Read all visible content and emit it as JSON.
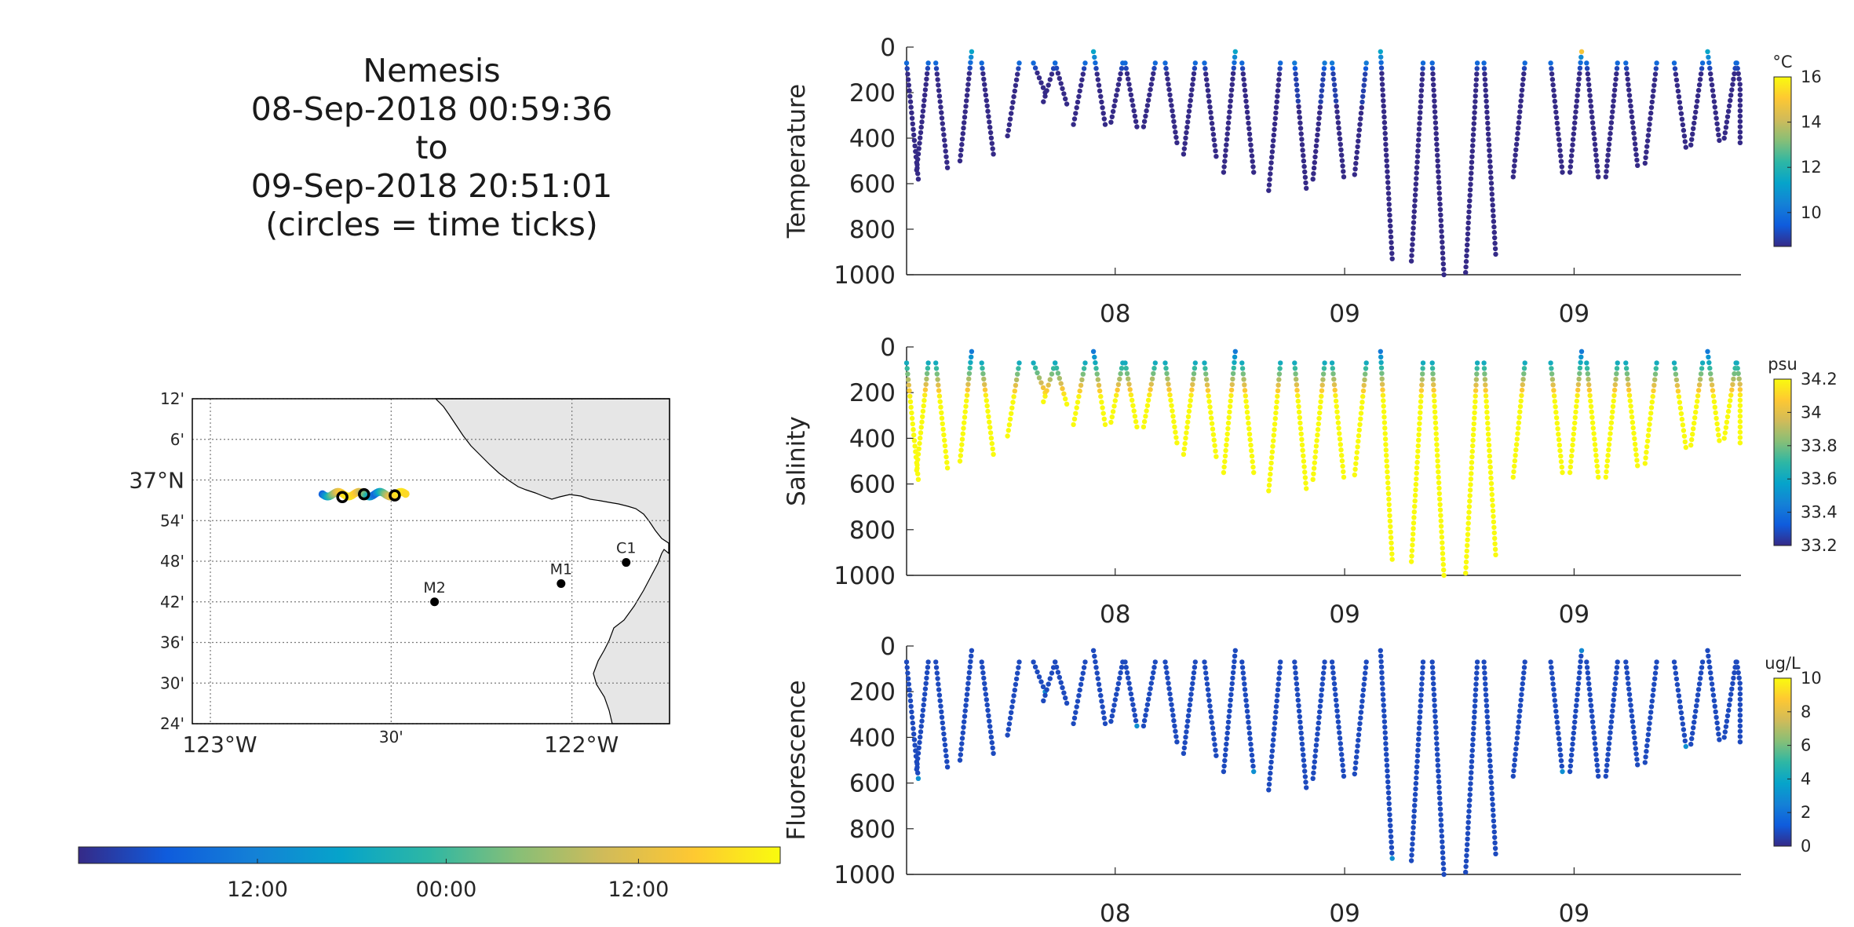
{
  "title_lines": [
    "Nemesis",
    "08-Sep-2018 00:59:36",
    "to",
    "09-Sep-2018 20:51:01",
    "(circles = time ticks)"
  ],
  "chart_data": [
    {
      "type": "map",
      "name": "track-map",
      "lon_range": [
        -123.05,
        -121.73
      ],
      "lat_range": [
        36.4,
        37.2
      ],
      "lon_ticks": [
        {
          "value": -123.0,
          "label": "123°W"
        },
        {
          "value": -122.5,
          "label": "30'"
        },
        {
          "value": -122.0,
          "label": "122°W"
        }
      ],
      "lat_ticks": [
        {
          "value": 37.2,
          "label": "12'"
        },
        {
          "value": 37.1,
          "label": "6'"
        },
        {
          "value": 37.0,
          "label": "37°N"
        },
        {
          "value": 36.9,
          "label": "54'"
        },
        {
          "value": 36.8,
          "label": "48'"
        },
        {
          "value": 36.7,
          "label": "42'"
        },
        {
          "value": 36.6,
          "label": "36'"
        },
        {
          "value": 36.5,
          "label": "30'"
        },
        {
          "value": 36.4,
          "label": "24'"
        }
      ],
      "grid": true,
      "stations": [
        {
          "name": "M2",
          "lon": -122.38,
          "lat": 36.7
        },
        {
          "name": "M1",
          "lon": -122.03,
          "lat": 36.745
        },
        {
          "name": "C1",
          "lon": -121.85,
          "lat": 36.797
        }
      ],
      "track_lon_range": [
        -122.69,
        -122.46
      ],
      "track_lat": 36.965,
      "time_circles": [
        {
          "lon": -122.635,
          "lat": 36.958
        },
        {
          "lon": -122.575,
          "lat": 36.965
        },
        {
          "lon": -122.49,
          "lat": 36.962
        }
      ],
      "land_color": "#e6e6e6"
    },
    {
      "type": "colorbar",
      "name": "time-colorbar",
      "orientation": "horizontal",
      "tick_labels": [
        "12:00",
        "00:00",
        "12:00"
      ],
      "tick_positions": [
        0.255,
        0.524,
        0.798
      ]
    },
    {
      "type": "scatter",
      "name": "temperature",
      "ylabel": "Temperature",
      "x_tick_labels": [
        "08",
        "09",
        "09"
      ],
      "y_ticks": [
        0,
        200,
        400,
        600,
        800,
        1000
      ],
      "ylim": [
        1000,
        0
      ],
      "colorbar": {
        "unit": "°C",
        "ticks": [
          10,
          12,
          14,
          16
        ],
        "range": [
          8.5,
          16
        ]
      }
    },
    {
      "type": "scatter",
      "name": "salinity",
      "ylabel": "Salinity",
      "x_tick_labels": [
        "08",
        "09",
        "09"
      ],
      "y_ticks": [
        0,
        200,
        400,
        600,
        800,
        1000
      ],
      "ylim": [
        1000,
        0
      ],
      "colorbar": {
        "unit": "psu",
        "ticks": [
          33.2,
          33.4,
          33.6,
          33.8,
          34,
          34.2
        ],
        "range": [
          33.2,
          34.2
        ]
      }
    },
    {
      "type": "scatter",
      "name": "fluorescence",
      "ylabel": "Fluorescence",
      "x_tick_labels": [
        "08",
        "09",
        "09"
      ],
      "y_ticks": [
        0,
        200,
        400,
        600,
        800,
        1000
      ],
      "ylim": [
        1000,
        0
      ],
      "colorbar": {
        "unit": "ug/L",
        "ticks": [
          0,
          2,
          4,
          6,
          8,
          10
        ],
        "range": [
          0,
          10
        ]
      }
    }
  ],
  "profiles": [
    {
      "t": 0.0,
      "bottom": 580
    },
    {
      "t": 0.012,
      "bottom": 540
    },
    {
      "t": 0.035,
      "bottom": 530
    },
    {
      "t": 0.064,
      "bottom": 500
    },
    {
      "t": 0.09,
      "bottom": 470
    },
    {
      "t": 0.121,
      "bottom": 390
    },
    {
      "t": 0.152,
      "bottom": 200
    },
    {
      "t": 0.164,
      "bottom": 240
    },
    {
      "t": 0.178,
      "bottom": 250
    },
    {
      "t": 0.2,
      "bottom": 340
    },
    {
      "t": 0.224,
      "bottom": 340
    },
    {
      "t": 0.245,
      "bottom": 330
    },
    {
      "t": 0.262,
      "bottom": 350
    },
    {
      "t": 0.284,
      "bottom": 350
    },
    {
      "t": 0.31,
      "bottom": 420
    },
    {
      "t": 0.332,
      "bottom": 470
    },
    {
      "t": 0.357,
      "bottom": 480
    },
    {
      "t": 0.38,
      "bottom": 550
    },
    {
      "t": 0.402,
      "bottom": 550
    },
    {
      "t": 0.434,
      "bottom": 630
    },
    {
      "t": 0.465,
      "bottom": 620
    },
    {
      "t": 0.487,
      "bottom": 580
    },
    {
      "t": 0.51,
      "bottom": 570
    },
    {
      "t": 0.537,
      "bottom": 560
    },
    {
      "t": 0.568,
      "bottom": 930
    },
    {
      "t": 0.605,
      "bottom": 940
    },
    {
      "t": 0.63,
      "bottom": 1000
    },
    {
      "t": 0.67,
      "bottom": 990
    },
    {
      "t": 0.692,
      "bottom": 910
    },
    {
      "t": 0.727,
      "bottom": 570
    },
    {
      "t": 0.772,
      "bottom": 550
    },
    {
      "t": 0.795,
      "bottom": 550
    },
    {
      "t": 0.815,
      "bottom": 570
    },
    {
      "t": 0.838,
      "bottom": 570
    },
    {
      "t": 0.862,
      "bottom": 520
    },
    {
      "t": 0.885,
      "bottom": 510
    },
    {
      "t": 0.92,
      "bottom": 440
    },
    {
      "t": 0.94,
      "bottom": 430
    },
    {
      "t": 0.96,
      "bottom": 410
    },
    {
      "t": 0.98,
      "bottom": 400
    },
    {
      "t": 0.995,
      "bottom": 420
    }
  ],
  "colors": {
    "parula": [
      "#352a87",
      "#0f5cdd",
      "#1481d6",
      "#06a4ca",
      "#2eb7a4",
      "#87bf77",
      "#d1bb59",
      "#fec832",
      "#f9fb0e"
    ]
  }
}
